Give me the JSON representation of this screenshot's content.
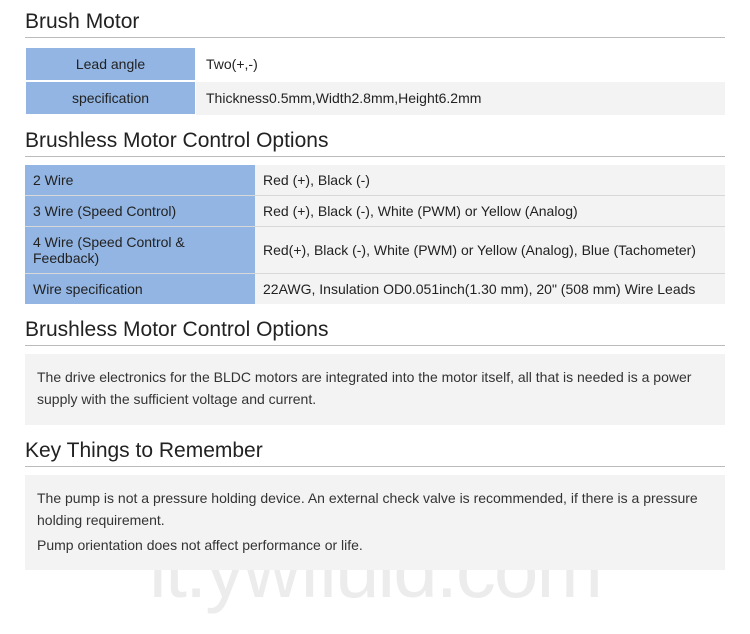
{
  "watermark": "it.ywfluid.com",
  "section1": {
    "title": "Brush Motor",
    "rows": [
      {
        "label": "Lead angle",
        "value": "Two(+,-)"
      },
      {
        "label": "specification",
        "value": "Thickness0.5mm,Width2.8mm,Height6.2mm"
      }
    ]
  },
  "section2": {
    "title": "Brushless Motor Control Options",
    "rows": [
      {
        "label": "2 Wire",
        "value": "Red (+), Black (-)"
      },
      {
        "label": "3 Wire (Speed Control)",
        "value": "Red (+), Black (-), White (PWM) or Yellow (Analog)"
      },
      {
        "label": "4 Wire (Speed Control & Feedback)",
        "value": "Red(+), Black (-), White (PWM) or Yellow (Analog), Blue (Tachometer)"
      },
      {
        "label": "Wire specification",
        "value": "22AWG, Insulation OD0.051inch(1.30 mm), 20\" (508 mm) Wire Leads"
      }
    ]
  },
  "section3": {
    "title": "Brushless Motor Control Options",
    "text": "The drive electronics for the BLDC motors are integrated into the motor itself, all that is needed is a power supply with the sufficient voltage and current."
  },
  "section4": {
    "title": "Key Things to Remember",
    "text1": "The pump is not a pressure holding device. An external check valve is recommended, if there is a pressure holding requirement.",
    "text2": "Pump orientation does not affect performance or life."
  },
  "colors": {
    "header_blue": "#92b5e3",
    "row_alt": "#f3f3f3",
    "border": "#d8d8d8",
    "title_border": "#bbbbbb",
    "text": "#222222"
  }
}
